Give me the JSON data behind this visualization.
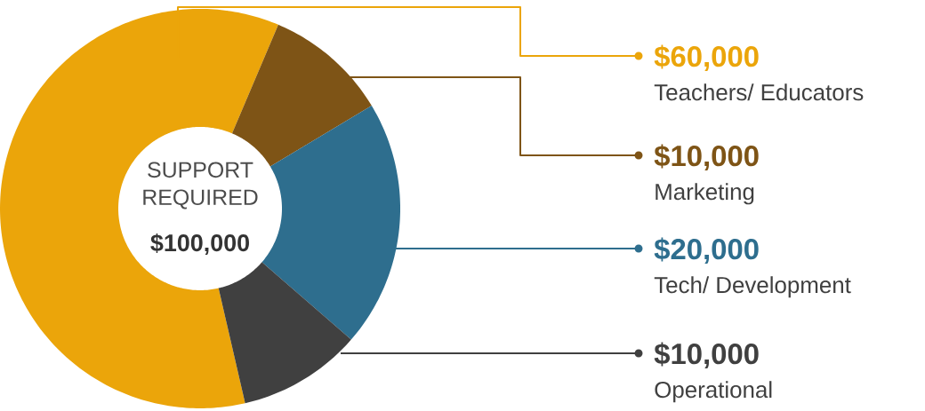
{
  "chart_data": {
    "type": "donut",
    "title": "SUPPORT REQUIRED",
    "subtitle": "$100,000",
    "categories": [
      "Teachers/ Educators",
      "Marketing",
      "Tech/ Development",
      "Operational"
    ],
    "values": [
      60000,
      10000,
      20000,
      10000
    ],
    "value_labels": [
      "$60,000",
      "$10,000",
      "$20,000",
      "$10,000"
    ],
    "colors": [
      "#eba50a",
      "#7e5416",
      "#2e6e8e",
      "#404040"
    ],
    "legend": "right"
  }
}
